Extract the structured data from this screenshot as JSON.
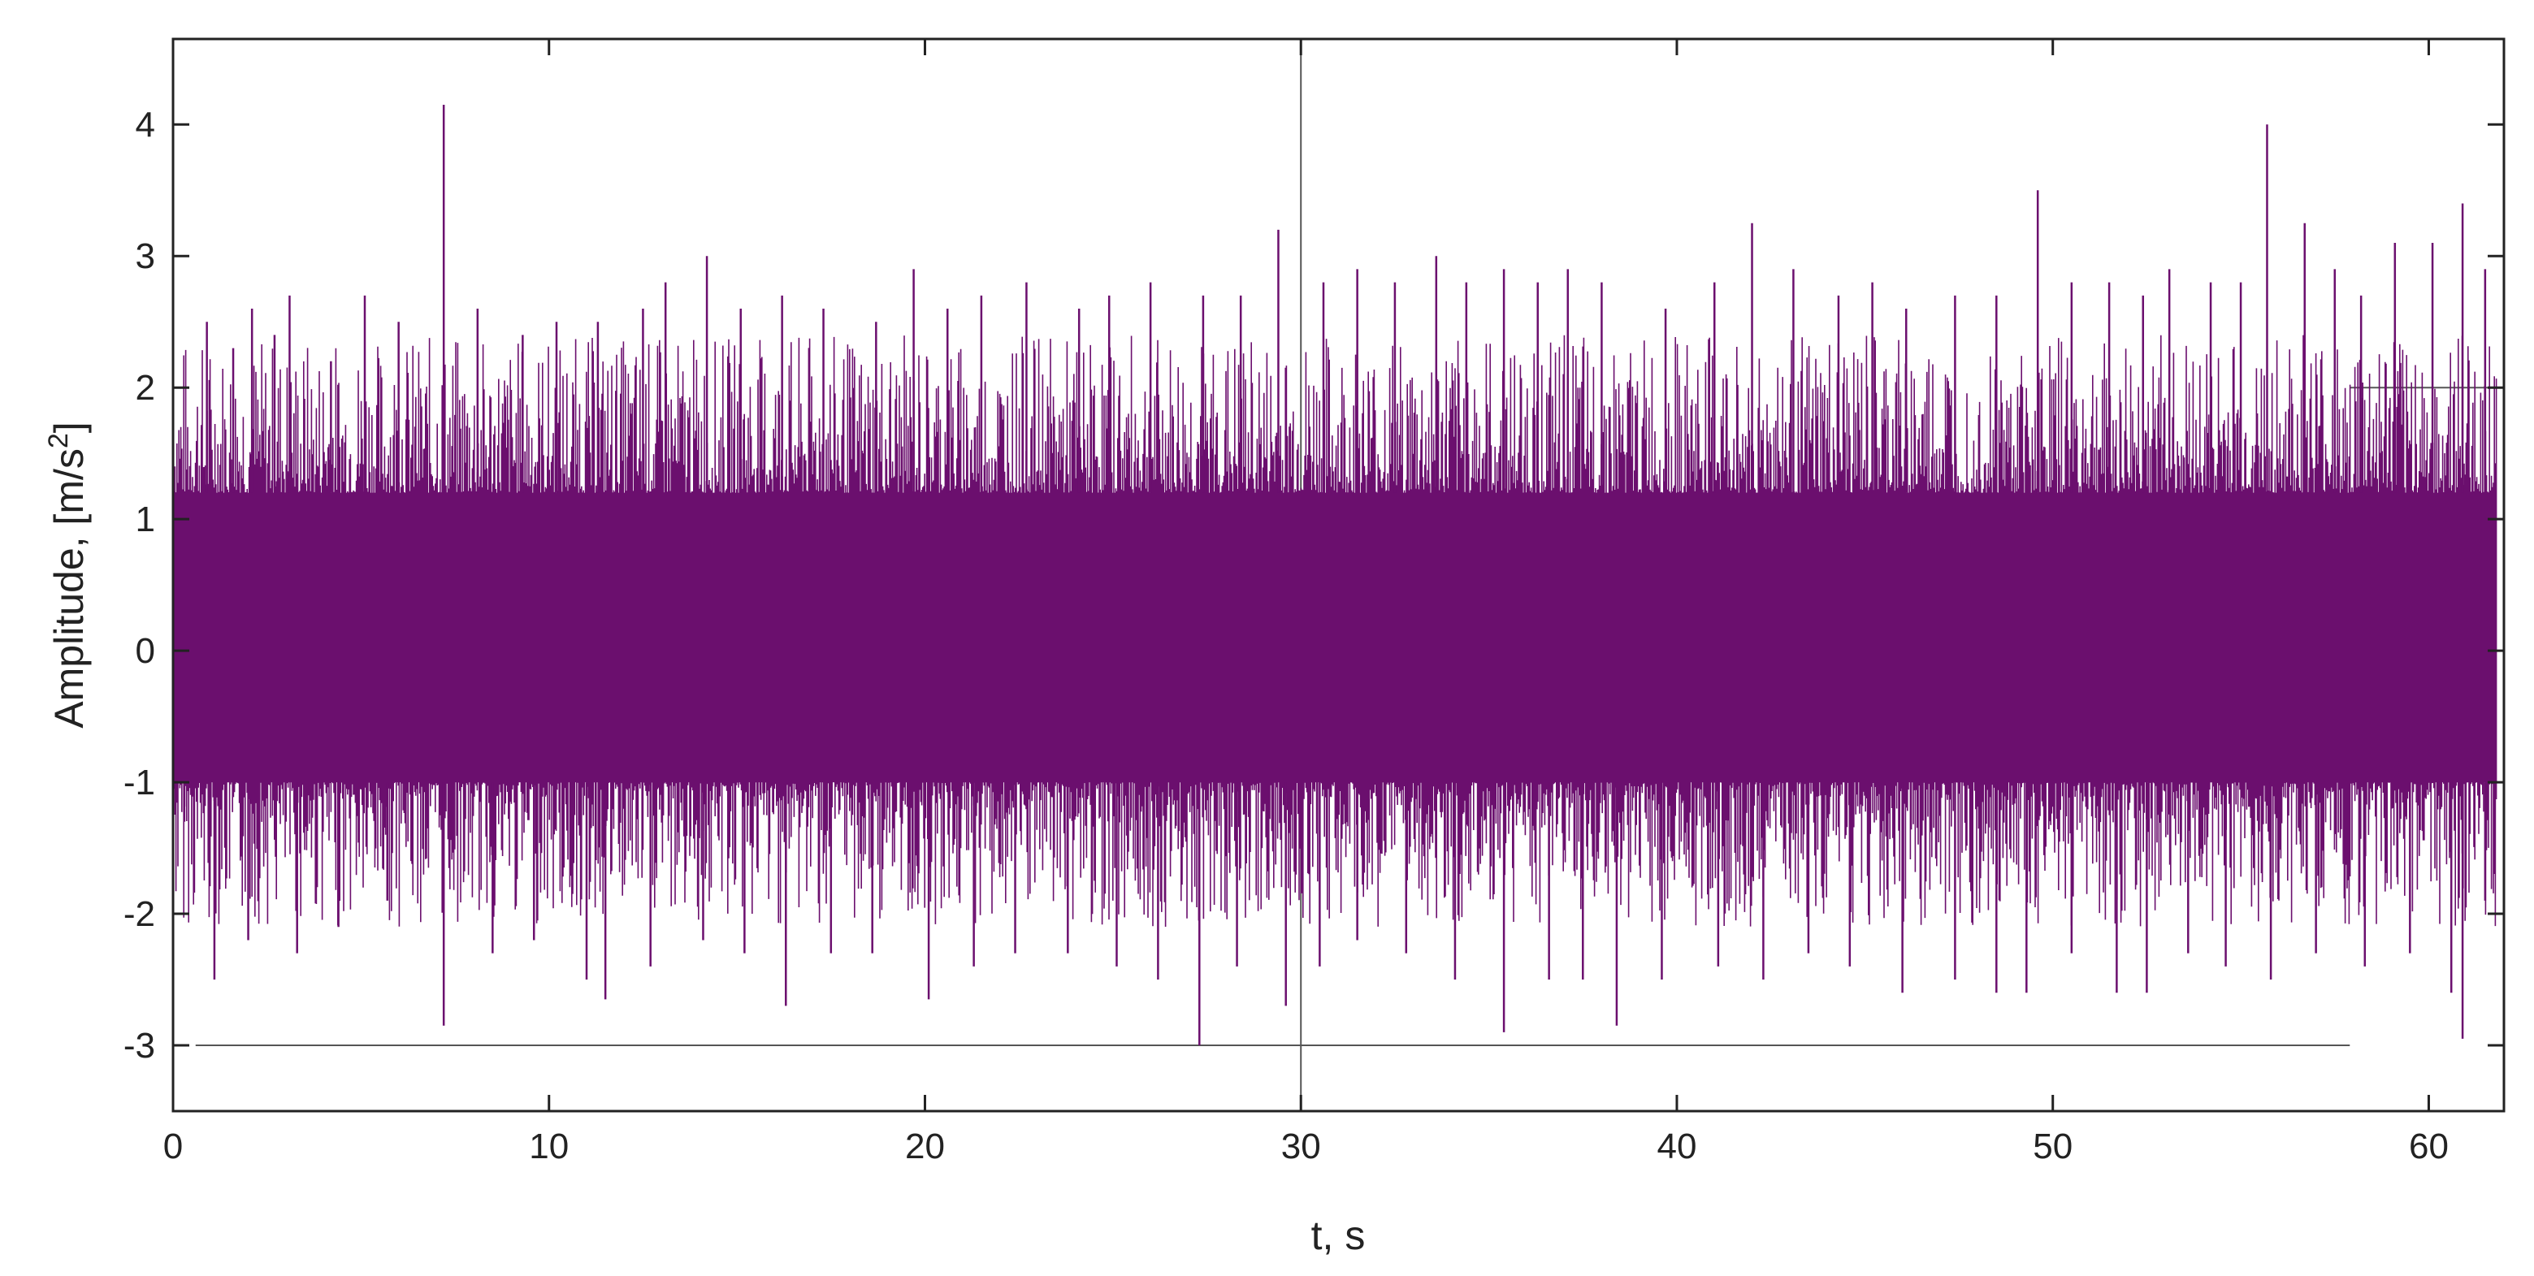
{
  "chart_data": {
    "type": "line",
    "title": "",
    "xlabel": "t, s",
    "ylabel": "Amplitude, [m/s",
    "ylabel_sup": "2",
    "ylabel_suffix": "]",
    "xlim": [
      0,
      62
    ],
    "ylim": [
      -3.5,
      4.65
    ],
    "xticks": [
      0,
      10,
      20,
      30,
      40,
      50,
      60
    ],
    "xtick_labels": [
      "0",
      "10",
      "20",
      "30",
      "40",
      "50",
      "60"
    ],
    "yticks": [
      -3,
      -2,
      -1,
      0,
      1,
      2,
      3,
      4
    ],
    "ytick_labels": [
      "-3",
      "-2",
      "-1",
      "0",
      "1",
      "2",
      "3",
      "4"
    ],
    "grid": false,
    "legend": "none",
    "series": [
      {
        "color": "#6b0f6e",
        "t_start": 0,
        "t_end": 61.8,
        "envelope_upper": 1.2,
        "envelope_lower": -1.0,
        "peaks": [
          {
            "x": 0.9,
            "y": 2.5
          },
          {
            "x": 1.6,
            "y": 2.3
          },
          {
            "x": 2.1,
            "y": 2.6
          },
          {
            "x": 2.7,
            "y": 2.4
          },
          {
            "x": 3.1,
            "y": 2.7
          },
          {
            "x": 4.2,
            "y": 2.2
          },
          {
            "x": 5.1,
            "y": 2.7
          },
          {
            "x": 6.0,
            "y": 2.5
          },
          {
            "x": 7.2,
            "y": 4.15
          },
          {
            "x": 8.1,
            "y": 2.6
          },
          {
            "x": 9.3,
            "y": 2.4
          },
          {
            "x": 10.2,
            "y": 2.5
          },
          {
            "x": 11.3,
            "y": 2.5
          },
          {
            "x": 12.5,
            "y": 2.6
          },
          {
            "x": 13.1,
            "y": 2.8
          },
          {
            "x": 14.2,
            "y": 3.0
          },
          {
            "x": 15.1,
            "y": 2.6
          },
          {
            "x": 16.2,
            "y": 2.7
          },
          {
            "x": 17.3,
            "y": 2.6
          },
          {
            "x": 18.7,
            "y": 2.5
          },
          {
            "x": 19.7,
            "y": 2.9
          },
          {
            "x": 20.6,
            "y": 2.6
          },
          {
            "x": 21.5,
            "y": 2.7
          },
          {
            "x": 22.7,
            "y": 2.8
          },
          {
            "x": 24.1,
            "y": 2.6
          },
          {
            "x": 24.9,
            "y": 2.7
          },
          {
            "x": 26.0,
            "y": 2.8
          },
          {
            "x": 27.4,
            "y": 2.7
          },
          {
            "x": 28.4,
            "y": 2.7
          },
          {
            "x": 29.4,
            "y": 3.2
          },
          {
            "x": 30.6,
            "y": 2.8
          },
          {
            "x": 31.5,
            "y": 2.9
          },
          {
            "x": 32.5,
            "y": 2.8
          },
          {
            "x": 33.6,
            "y": 3.0
          },
          {
            "x": 34.4,
            "y": 2.8
          },
          {
            "x": 35.4,
            "y": 2.9
          },
          {
            "x": 36.3,
            "y": 2.8
          },
          {
            "x": 37.1,
            "y": 2.9
          },
          {
            "x": 38.0,
            "y": 2.8
          },
          {
            "x": 39.7,
            "y": 2.6
          },
          {
            "x": 41.0,
            "y": 2.8
          },
          {
            "x": 42.0,
            "y": 3.25
          },
          {
            "x": 43.1,
            "y": 2.9
          },
          {
            "x": 44.3,
            "y": 2.7
          },
          {
            "x": 45.2,
            "y": 2.8
          },
          {
            "x": 46.1,
            "y": 2.6
          },
          {
            "x": 47.4,
            "y": 2.7
          },
          {
            "x": 48.5,
            "y": 2.7
          },
          {
            "x": 49.6,
            "y": 3.5
          },
          {
            "x": 50.5,
            "y": 2.8
          },
          {
            "x": 51.5,
            "y": 2.8
          },
          {
            "x": 52.4,
            "y": 2.7
          },
          {
            "x": 53.1,
            "y": 2.9
          },
          {
            "x": 54.2,
            "y": 2.8
          },
          {
            "x": 55.0,
            "y": 2.8
          },
          {
            "x": 55.7,
            "y": 4.0
          },
          {
            "x": 56.7,
            "y": 3.25
          },
          {
            "x": 57.5,
            "y": 2.9
          },
          {
            "x": 58.2,
            "y": 2.7
          },
          {
            "x": 59.1,
            "y": 3.1
          },
          {
            "x": 60.1,
            "y": 3.1
          },
          {
            "x": 60.9,
            "y": 3.4
          },
          {
            "x": 61.5,
            "y": 2.9
          }
        ],
        "troughs": [
          {
            "x": 0.3,
            "y": -1.3
          },
          {
            "x": 1.1,
            "y": -2.5
          },
          {
            "x": 2.0,
            "y": -2.2
          },
          {
            "x": 3.3,
            "y": -2.3
          },
          {
            "x": 4.4,
            "y": -2.1
          },
          {
            "x": 5.7,
            "y": -1.9
          },
          {
            "x": 7.2,
            "y": -2.85
          },
          {
            "x": 8.5,
            "y": -2.3
          },
          {
            "x": 9.6,
            "y": -2.2
          },
          {
            "x": 11.0,
            "y": -2.5
          },
          {
            "x": 11.5,
            "y": -2.65
          },
          {
            "x": 12.7,
            "y": -2.4
          },
          {
            "x": 14.1,
            "y": -2.2
          },
          {
            "x": 15.2,
            "y": -2.3
          },
          {
            "x": 16.3,
            "y": -2.7
          },
          {
            "x": 17.5,
            "y": -2.3
          },
          {
            "x": 18.6,
            "y": -2.3
          },
          {
            "x": 20.1,
            "y": -2.65
          },
          {
            "x": 21.3,
            "y": -2.4
          },
          {
            "x": 22.4,
            "y": -2.3
          },
          {
            "x": 23.8,
            "y": -2.3
          },
          {
            "x": 25.1,
            "y": -2.4
          },
          {
            "x": 26.2,
            "y": -2.5
          },
          {
            "x": 27.3,
            "y": -3.0
          },
          {
            "x": 28.3,
            "y": -2.4
          },
          {
            "x": 29.6,
            "y": -2.7
          },
          {
            "x": 30.5,
            "y": -2.4
          },
          {
            "x": 31.5,
            "y": -2.2
          },
          {
            "x": 32.8,
            "y": -2.3
          },
          {
            "x": 34.1,
            "y": -2.5
          },
          {
            "x": 35.4,
            "y": -2.9
          },
          {
            "x": 36.6,
            "y": -2.5
          },
          {
            "x": 37.5,
            "y": -2.5
          },
          {
            "x": 38.4,
            "y": -2.85
          },
          {
            "x": 39.6,
            "y": -2.5
          },
          {
            "x": 41.1,
            "y": -2.4
          },
          {
            "x": 42.3,
            "y": -2.5
          },
          {
            "x": 43.5,
            "y": -2.3
          },
          {
            "x": 44.6,
            "y": -2.4
          },
          {
            "x": 46.0,
            "y": -2.6
          },
          {
            "x": 47.4,
            "y": -2.5
          },
          {
            "x": 48.5,
            "y": -2.6
          },
          {
            "x": 49.3,
            "y": -2.6
          },
          {
            "x": 50.5,
            "y": -2.3
          },
          {
            "x": 51.7,
            "y": -2.6
          },
          {
            "x": 52.5,
            "y": -2.6
          },
          {
            "x": 53.6,
            "y": -2.3
          },
          {
            "x": 54.6,
            "y": -2.4
          },
          {
            "x": 55.8,
            "y": -2.5
          },
          {
            "x": 57.0,
            "y": -2.3
          },
          {
            "x": 58.3,
            "y": -2.4
          },
          {
            "x": 59.5,
            "y": -2.3
          },
          {
            "x": 60.6,
            "y": -2.6
          },
          {
            "x": 60.9,
            "y": -2.95
          },
          {
            "x": 61.5,
            "y": -1.9
          }
        ]
      }
    ],
    "reference_lines": [
      {
        "orientation": "vertical",
        "x": 30,
        "y_from": -3.5,
        "y_to": 4.65,
        "color": "#555555"
      },
      {
        "orientation": "horizontal",
        "y": -3,
        "x_from": 0.6,
        "x_to": 57.9,
        "color": "#555555"
      },
      {
        "orientation": "horizontal",
        "y": 2,
        "x_from": 57.9,
        "x_to": 62,
        "color": "#555555"
      }
    ]
  }
}
